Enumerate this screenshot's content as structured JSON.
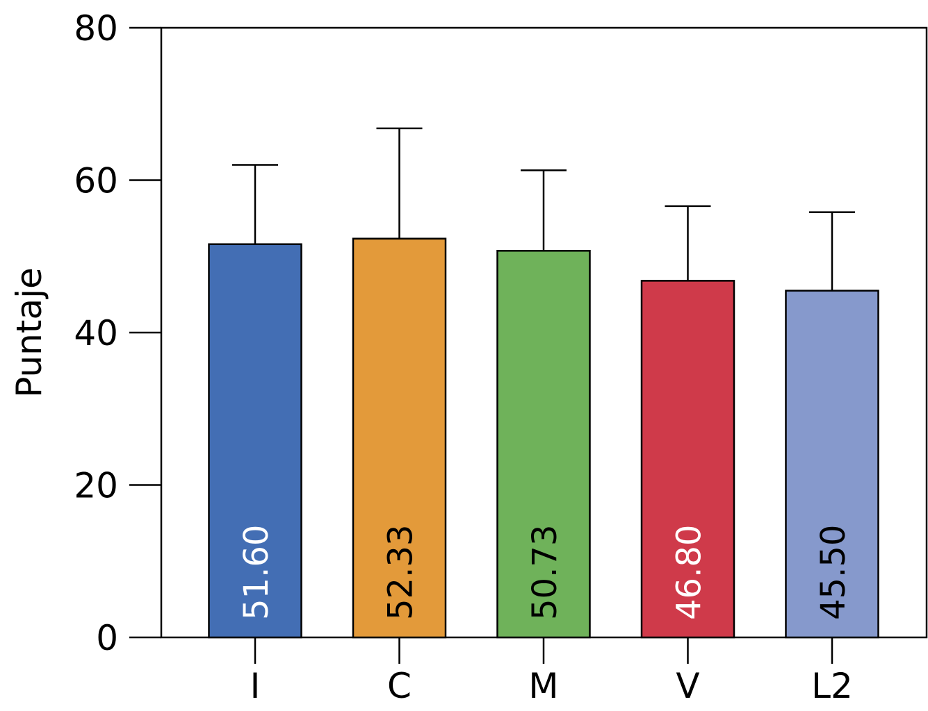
{
  "chart_data": {
    "type": "bar",
    "title": "",
    "xlabel": "",
    "ylabel": "Puntaje",
    "ylim": [
      0,
      80
    ],
    "yticks": [
      0,
      20,
      40,
      60,
      80
    ],
    "grid": false,
    "legend": "none",
    "categories": [
      "I",
      "C",
      "M",
      "V",
      "L2"
    ],
    "values": [
      51.6,
      52.33,
      50.73,
      46.8,
      45.5
    ],
    "value_labels": [
      "51.60",
      "52.33",
      "50.73",
      "46.80",
      "45.50"
    ],
    "error_upper": [
      62.0,
      66.8,
      61.3,
      56.6,
      55.8
    ],
    "colors": [
      "#436EB4",
      "#E39A3A",
      "#6FB25A",
      "#CF3A4A",
      "#8699CC"
    ],
    "label_colors": [
      "#ffffff",
      "#000000",
      "#000000",
      "#ffffff",
      "#000000"
    ]
  }
}
